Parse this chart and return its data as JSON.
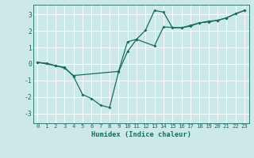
{
  "xlabel": "Humidex (Indice chaleur)",
  "background_color": "#cce8e8",
  "grid_color": "#ffffff",
  "line_color": "#1a6b5e",
  "xlim": [
    -0.5,
    23.5
  ],
  "ylim": [
    -3.6,
    3.6
  ],
  "xticks": [
    0,
    1,
    2,
    3,
    4,
    5,
    6,
    7,
    8,
    9,
    10,
    11,
    12,
    13,
    14,
    15,
    16,
    17,
    18,
    19,
    20,
    21,
    22,
    23
  ],
  "yticks": [
    -3,
    -2,
    -1,
    0,
    1,
    2,
    3
  ],
  "line1_x": [
    0,
    1,
    2,
    3,
    4,
    5,
    6,
    7,
    8,
    9,
    10,
    11,
    12,
    13,
    14,
    15,
    16,
    17,
    18,
    19,
    20,
    21,
    22,
    23
  ],
  "line1_y": [
    0.1,
    0.05,
    -0.1,
    -0.2,
    -0.75,
    -1.85,
    -2.1,
    -2.5,
    -2.65,
    -0.5,
    0.75,
    1.5,
    2.05,
    3.25,
    3.15,
    2.2,
    2.2,
    2.3,
    2.5,
    2.55,
    2.65,
    2.8,
    3.05,
    3.25
  ],
  "line2_x": [
    0,
    2,
    3,
    4,
    9,
    10,
    11,
    13,
    14,
    16,
    17,
    18,
    19,
    20,
    21,
    22,
    23
  ],
  "line2_y": [
    0.1,
    -0.1,
    -0.25,
    -0.7,
    -0.45,
    1.35,
    1.5,
    1.1,
    2.25,
    2.2,
    2.35,
    2.5,
    2.6,
    2.65,
    2.8,
    3.05,
    3.25
  ]
}
